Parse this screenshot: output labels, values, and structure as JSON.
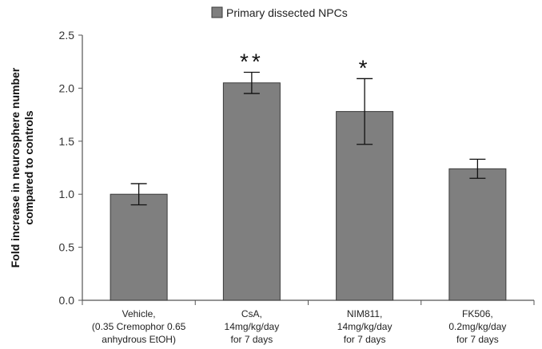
{
  "chart_data": {
    "type": "bar",
    "legend": {
      "label": "Primary dissected NPCs",
      "placement": "top"
    },
    "ylabel": [
      "Fold increase in neurosphere number",
      "compared to controls"
    ],
    "xlabel": "",
    "ylim": [
      0,
      2.5
    ],
    "yticks": [
      "0.0",
      "0.5",
      "1.0",
      "1.5",
      "2.0",
      "2.5"
    ],
    "grid": false,
    "categories": [
      {
        "lines": [
          "Vehicle,",
          "(0.35 Cremophor 0.65",
          "anhydrous EtOH)"
        ]
      },
      {
        "lines": [
          "CsA,",
          "14mg/kg/day",
          "for 7 days"
        ]
      },
      {
        "lines": [
          "NIM811,",
          "14mg/kg/day",
          "for 7 days"
        ]
      },
      {
        "lines": [
          "FK506,",
          "0.2mg/kg/day",
          "for 7 days"
        ]
      }
    ],
    "series": [
      {
        "name": "Primary dissected NPCs",
        "values": [
          1.0,
          2.05,
          1.78,
          1.24
        ],
        "errors": [
          0.1,
          0.1,
          0.31,
          0.09
        ],
        "significance": [
          "",
          "**",
          "*",
          ""
        ]
      }
    ],
    "colors": {
      "bar": "#7f7f7f",
      "bar_edge": "#3a3a3a",
      "axis": "#555555",
      "error": "#111111"
    }
  }
}
